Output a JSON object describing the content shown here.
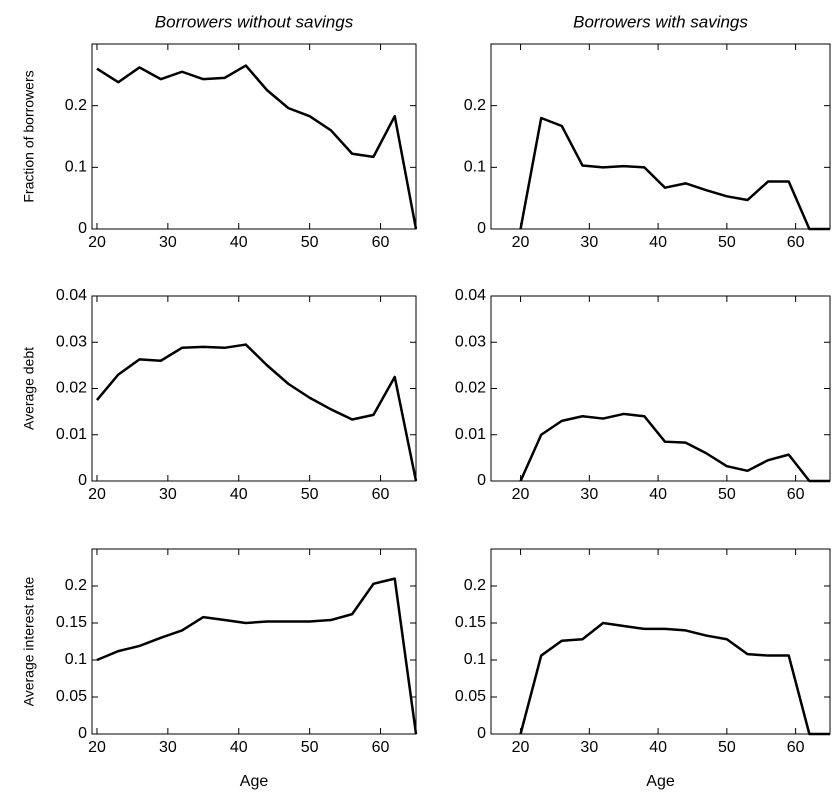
{
  "chart_data": [
    {
      "type": "line",
      "title": "Borrowers without savings",
      "ylabel": "Fraction of borrowers",
      "x": [
        20,
        23,
        26,
        29,
        32,
        35,
        38,
        41,
        44,
        47,
        50,
        53,
        56,
        59,
        62,
        65
      ],
      "values": [
        0.26,
        0.238,
        0.262,
        0.243,
        0.255,
        0.243,
        0.245,
        0.265,
        0.225,
        0.196,
        0.183,
        0.16,
        0.122,
        0.117,
        0.183,
        0
      ],
      "color": "#000000",
      "xlim": [
        19.3,
        65
      ],
      "ylim": [
        0,
        0.3
      ],
      "xticks": [
        20,
        30,
        40,
        50,
        60
      ],
      "yticks": [
        0,
        0.1,
        0.2
      ]
    },
    {
      "type": "line",
      "title": "Borrowers with savings",
      "x": [
        20,
        23,
        26,
        29,
        32,
        35,
        38,
        41,
        44,
        47,
        50,
        53,
        56,
        59,
        62,
        65
      ],
      "values": [
        0,
        0.18,
        0.167,
        0.103,
        0.1,
        0.102,
        0.1,
        0.067,
        0.074,
        0.063,
        0.053,
        0.047,
        0.077,
        0.077,
        0,
        0
      ],
      "color": "#000000",
      "xlim": [
        15.7,
        65
      ],
      "ylim": [
        0,
        0.3
      ],
      "xticks": [
        20,
        30,
        40,
        50,
        60
      ],
      "yticks": [
        0,
        0.1,
        0.2
      ]
    },
    {
      "type": "line",
      "ylabel": "Average debt",
      "x": [
        20,
        23,
        26,
        29,
        32,
        35,
        38,
        41,
        44,
        47,
        50,
        53,
        56,
        59,
        62,
        65
      ],
      "values": [
        0.0175,
        0.023,
        0.0263,
        0.026,
        0.0288,
        0.029,
        0.0288,
        0.0295,
        0.025,
        0.021,
        0.018,
        0.0155,
        0.0133,
        0.0143,
        0.0225,
        0
      ],
      "color": "#000000",
      "xlim": [
        19.3,
        65
      ],
      "ylim": [
        0,
        0.04
      ],
      "xticks": [
        20,
        30,
        40,
        50,
        60
      ],
      "yticks": [
        0,
        0.01,
        0.02,
        0.03,
        0.04
      ]
    },
    {
      "type": "line",
      "x": [
        20,
        23,
        26,
        29,
        32,
        35,
        38,
        41,
        44,
        47,
        50,
        53,
        56,
        59,
        62,
        65
      ],
      "values": [
        0,
        0.01,
        0.013,
        0.014,
        0.0135,
        0.0145,
        0.014,
        0.0085,
        0.0083,
        0.006,
        0.0032,
        0.0022,
        0.0045,
        0.0057,
        0,
        0
      ],
      "color": "#000000",
      "xlim": [
        15.7,
        65
      ],
      "ylim": [
        0,
        0.04
      ],
      "xticks": [
        20,
        30,
        40,
        50,
        60
      ],
      "yticks": [
        0,
        0.01,
        0.02,
        0.03,
        0.04
      ]
    },
    {
      "type": "line",
      "ylabel": "Average interest rate",
      "xlabel": "Age",
      "x": [
        20,
        23,
        26,
        29,
        32,
        35,
        38,
        41,
        44,
        47,
        50,
        53,
        56,
        59,
        62,
        65
      ],
      "values": [
        0.1,
        0.112,
        0.119,
        0.13,
        0.14,
        0.158,
        0.154,
        0.15,
        0.152,
        0.152,
        0.152,
        0.154,
        0.162,
        0.203,
        0.21,
        0
      ],
      "color": "#000000",
      "xlim": [
        19.3,
        65
      ],
      "ylim": [
        0,
        0.25
      ],
      "xticks": [
        20,
        30,
        40,
        50,
        60
      ],
      "yticks": [
        0,
        0.05,
        0.1,
        0.15,
        0.2
      ]
    },
    {
      "type": "line",
      "xlabel": "Age",
      "x": [
        20,
        23,
        26,
        29,
        32,
        35,
        38,
        41,
        44,
        47,
        50,
        53,
        56,
        59,
        62,
        65
      ],
      "values": [
        0,
        0.106,
        0.126,
        0.128,
        0.15,
        0.146,
        0.142,
        0.142,
        0.14,
        0.133,
        0.128,
        0.108,
        0.106,
        0.106,
        0,
        0
      ],
      "color": "#000000",
      "xlim": [
        15.7,
        65
      ],
      "ylim": [
        0,
        0.25
      ],
      "xticks": [
        20,
        30,
        40,
        50,
        60
      ],
      "yticks": [
        0,
        0.05,
        0.1,
        0.15,
        0.2
      ]
    }
  ]
}
